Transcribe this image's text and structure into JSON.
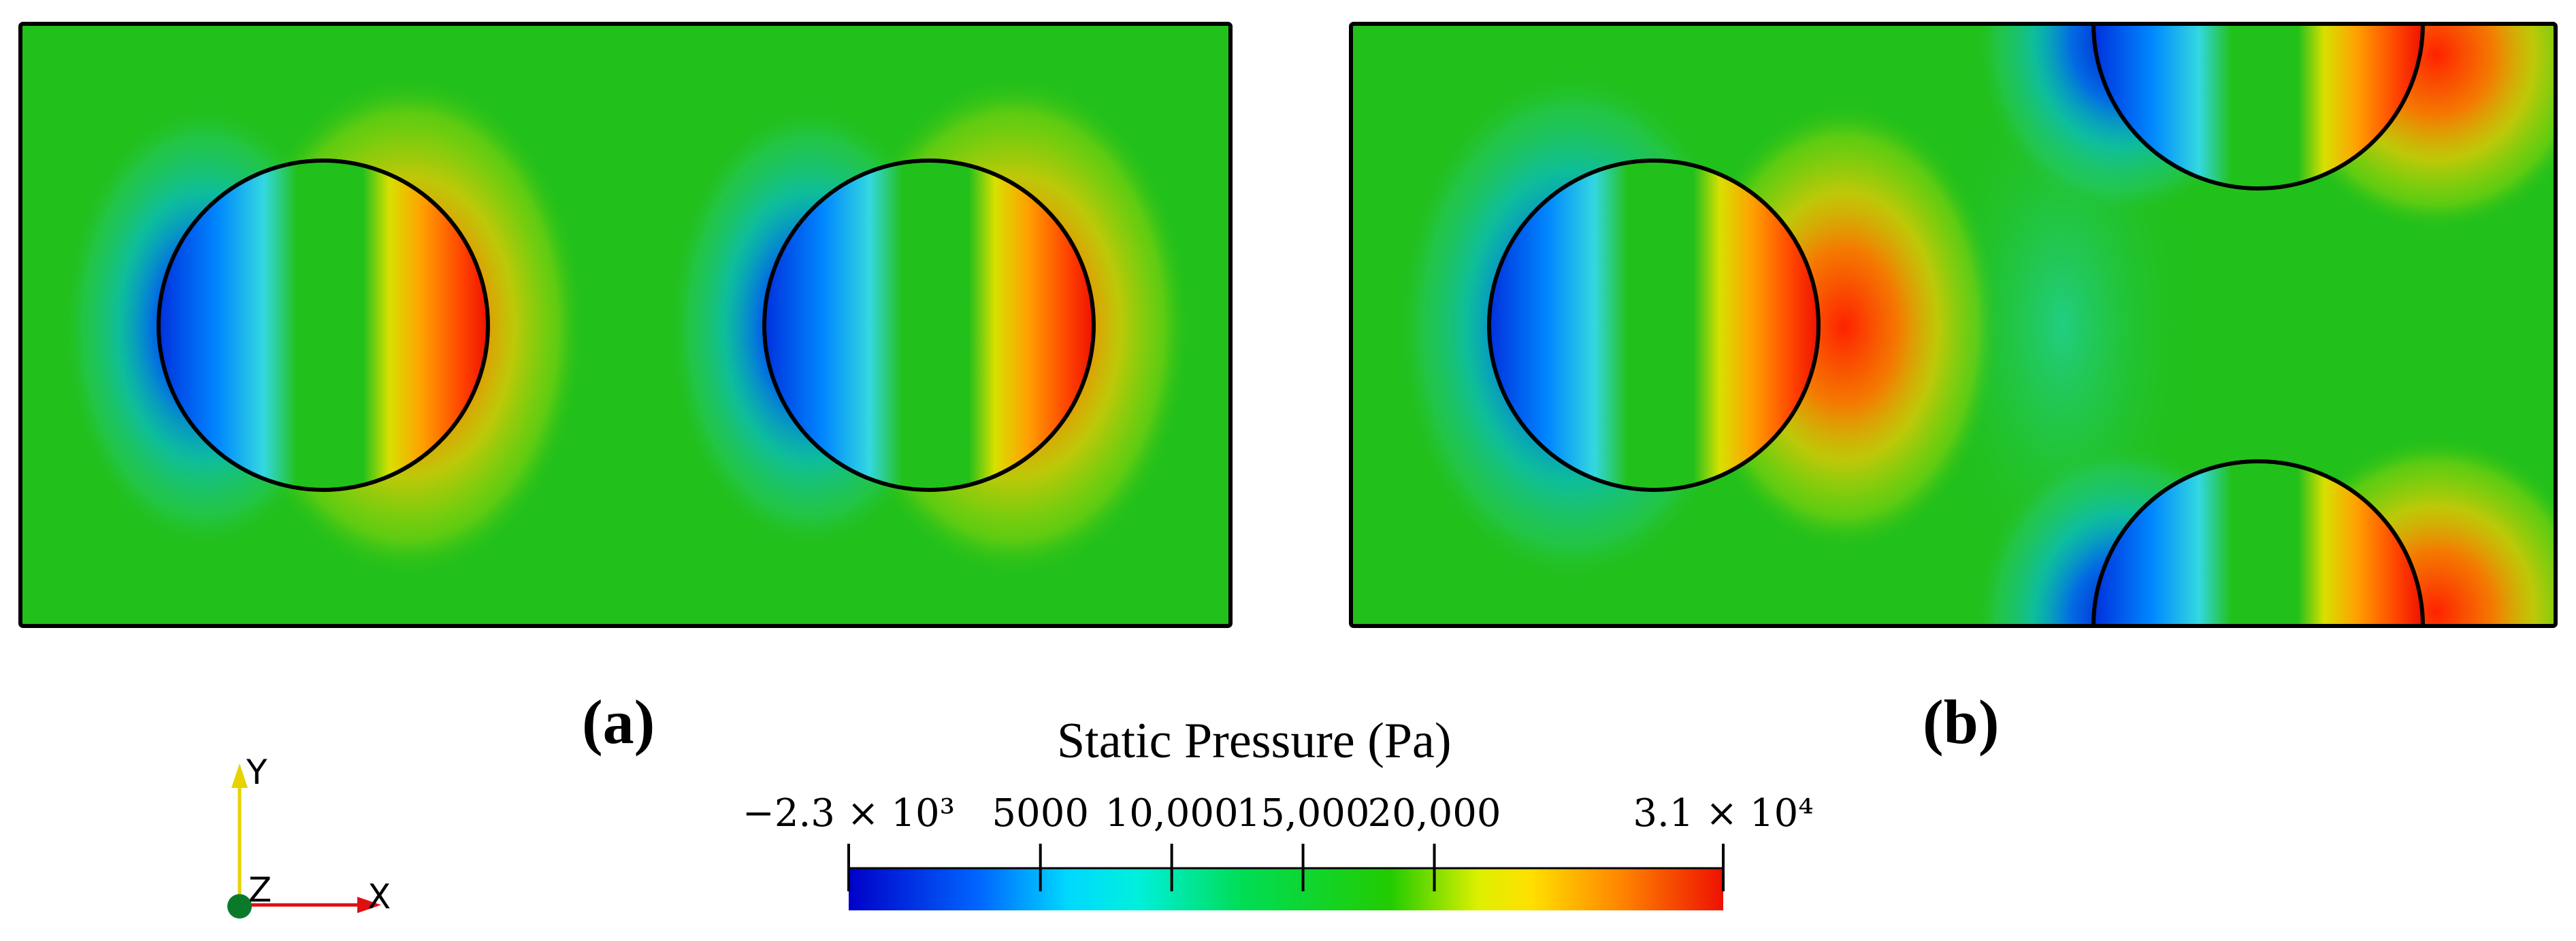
{
  "panels": [
    {
      "label_open": "(",
      "label_letter": "a",
      "label_close": ")"
    },
    {
      "label_open": "(",
      "label_letter": "b",
      "label_close": ")"
    }
  ],
  "colorbar": {
    "title": "Static Pressure (Pa)",
    "ticks": [
      {
        "label": "−2.3 × 10³",
        "value": -2300
      },
      {
        "label": "5000",
        "value": 5000
      },
      {
        "label": "10,000",
        "value": 10000
      },
      {
        "label": "15,000",
        "value": 15000
      },
      {
        "label": "20,000",
        "value": 20000
      },
      {
        "label": "3.1 × 10⁴",
        "value": 31000
      }
    ],
    "min": -2300,
    "max": 31000,
    "colors": [
      "#0000c8",
      "#00aaff",
      "#00ffee",
      "#00dd55",
      "#22cc00",
      "#ffff00",
      "#ff8800",
      "#ee1100"
    ]
  },
  "axes": {
    "y": "Y",
    "z": "Z",
    "x": "X"
  },
  "colors": {
    "field": "#22c01b",
    "frame": "#000000",
    "axis_y": "#e8d200",
    "axis_x": "#dd1111",
    "axis_z": "#0a7a2a"
  }
}
